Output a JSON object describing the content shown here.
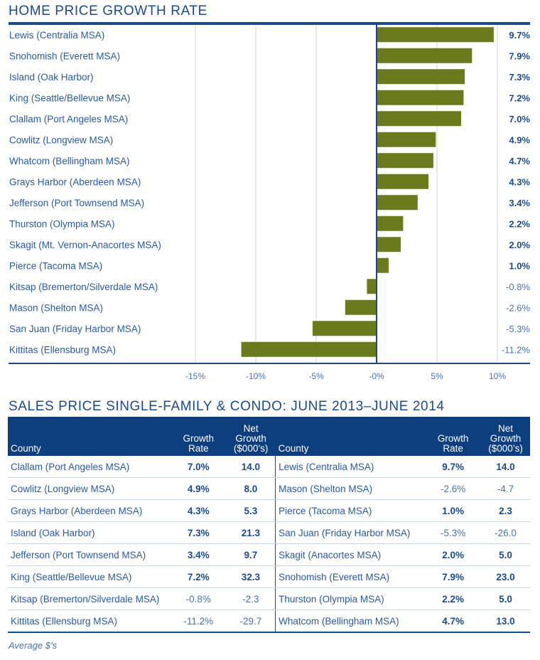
{
  "chart_data": {
    "type": "bar",
    "orientation": "horizontal",
    "title": "HOME PRICE GROWTH RATE",
    "xlabel": "",
    "ylabel": "",
    "xlim": [
      -15,
      10
    ],
    "x_ticks": [
      -15,
      -10,
      -5,
      0,
      5,
      10
    ],
    "x_tick_labels": [
      "-15%",
      "-10%",
      "-5%",
      "-0%",
      "5%",
      "10%"
    ],
    "grid": true,
    "bar_color": "#6a7a1c",
    "categories": [
      "Lewis (Centralia MSA)",
      "Snohomish (Everett MSA)",
      "Island (Oak Harbor)",
      "King (Seattle/Bellevue MSA)",
      "Clallam (Port Angeles MSA)",
      "Cowlitz (Longview MSA)",
      "Whatcom (Bellingham MSA)",
      "Grays Harbor (Aberdeen MSA)",
      "Jefferson (Port Townsend MSA)",
      "Thurston (Olympia MSA)",
      "Skagit (Mt. Vernon-Anacortes MSA)",
      "Pierce (Tacoma MSA)",
      "Kitsap (Bremerton/Silverdale MSA)",
      "Mason (Shelton MSA)",
      "San Juan (Friday Harbor MSA)",
      "Kittitas (Ellensburg MSA)"
    ],
    "values": [
      9.7,
      7.9,
      7.3,
      7.2,
      7.0,
      4.9,
      4.7,
      4.3,
      3.4,
      2.2,
      2.0,
      1.0,
      -0.8,
      -2.6,
      -5.3,
      -11.2
    ],
    "value_labels": [
      "9.7%",
      "7.9%",
      "7.3%",
      "7.2%",
      "7.0%",
      "4.9%",
      "4.7%",
      "4.3%",
      "3.4%",
      "2.2%",
      "2.0%",
      "1.0%",
      "-0.8%",
      "-2.6%",
      "-5.3%",
      "-11.2%"
    ]
  },
  "table": {
    "title": "SALES PRICE SINGLE-FAMILY & CONDO: JUNE 2013–JUNE 2014",
    "headers": {
      "county": "County",
      "growth_rate": [
        "Growth",
        "Rate"
      ],
      "net_growth": [
        "Net",
        "Growth",
        "($000’s)"
      ]
    },
    "left_rows": [
      {
        "county": "Clallam (Port Angeles MSA)",
        "rate": "7.0%",
        "net": "14.0"
      },
      {
        "county": "Cowlitz (Longview MSA)",
        "rate": "4.9%",
        "net": "8.0"
      },
      {
        "county": "Grays Harbor (Aberdeen MSA)",
        "rate": "4.3%",
        "net": "5.3"
      },
      {
        "county": "Island (Oak Harbor)",
        "rate": "7.3%",
        "net": "21.3"
      },
      {
        "county": "Jefferson (Port Townsend MSA)",
        "rate": "3.4%",
        "net": "9.7"
      },
      {
        "county": "King (Seattle/Bellevue MSA)",
        "rate": "7.2%",
        "net": "32.3"
      },
      {
        "county": "Kitsap (Bremerton/Silverdale MSA)",
        "rate": "-0.8%",
        "net": "-2.3"
      },
      {
        "county": "Kittitas (Ellensburg MSA)",
        "rate": "-11.2%",
        "net": "-29.7"
      }
    ],
    "right_rows": [
      {
        "county": "Lewis (Centralia MSA)",
        "rate": "9.7%",
        "net": "14.0"
      },
      {
        "county": "Mason (Shelton MSA)",
        "rate": "-2.6%",
        "net": "-4.7"
      },
      {
        "county": "Pierce (Tacoma MSA)",
        "rate": "1.0%",
        "net": "2.3"
      },
      {
        "county": "San Juan (Friday Harbor MSA)",
        "rate": "-5.3%",
        "net": "-26.0"
      },
      {
        "county": "Skagit (Anacortes MSA)",
        "rate": "2.0%",
        "net": "5.0"
      },
      {
        "county": "Snohomish (Everett MSA)",
        "rate": "7.9%",
        "net": "23.0"
      },
      {
        "county": "Thurston (Olympia MSA)",
        "rate": "2.2%",
        "net": "5.0"
      },
      {
        "county": "Whatcom (Bellingham MSA)",
        "rate": "4.7%",
        "net": "13.0"
      }
    ],
    "footnote": "Average $’s"
  },
  "colors": {
    "primary_blue": "#1b4a8a",
    "header_blue": "#0d3f7f",
    "bar_olive": "#6a7a1c",
    "grid": "#c9d5e6"
  }
}
